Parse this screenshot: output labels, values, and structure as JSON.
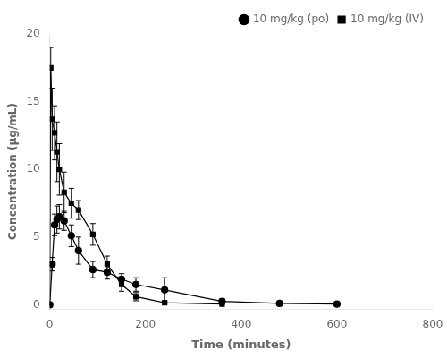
{
  "chart_data": {
    "type": "line",
    "xlabel": "Time (minutes)",
    "ylabel": "Concentration (μg/mL)",
    "xlim": [
      0,
      800
    ],
    "ylim": [
      -0.3,
      20
    ],
    "xticks": [
      0,
      200,
      400,
      600,
      800
    ],
    "yticks": [
      0,
      5,
      10,
      15,
      20
    ],
    "grid": false,
    "legend": "upper right",
    "series": [
      {
        "name": "10 mg/kg (po)",
        "color": "#000000",
        "marker": "circle",
        "line_style": "solid",
        "x": [
          0,
          5,
          10,
          15,
          20,
          30,
          45,
          60,
          90,
          120,
          150,
          180,
          240,
          360,
          480,
          600
        ],
        "values": [
          0,
          3.0,
          5.9,
          6.3,
          6.5,
          6.2,
          5.1,
          4.0,
          2.6,
          2.4,
          1.9,
          1.5,
          1.1,
          0.25,
          0.1,
          0.05
        ],
        "errors": [
          0,
          0.5,
          0.8,
          1.0,
          0.9,
          0.7,
          0.8,
          1.0,
          0.6,
          0.5,
          0.4,
          0.5,
          0.9,
          0.2,
          0.08,
          0.0
        ]
      },
      {
        "name": "10 mg/kg (IV)",
        "color": "#000000",
        "marker": "square",
        "line_style": "solid",
        "x": [
          0,
          2,
          5,
          10,
          15,
          20,
          30,
          45,
          60,
          90,
          120,
          150,
          180,
          240,
          360
        ],
        "values": [
          0,
          17.5,
          13.7,
          12.7,
          11.3,
          10.0,
          8.3,
          7.5,
          7.0,
          5.2,
          3.0,
          1.5,
          0.6,
          0.15,
          0.05
        ],
        "errors": [
          0,
          1.5,
          2.3,
          2.0,
          2.2,
          1.9,
          1.5,
          1.1,
          0.7,
          0.8,
          0.6,
          0.5,
          0.3,
          0.1,
          0.04
        ]
      }
    ]
  }
}
